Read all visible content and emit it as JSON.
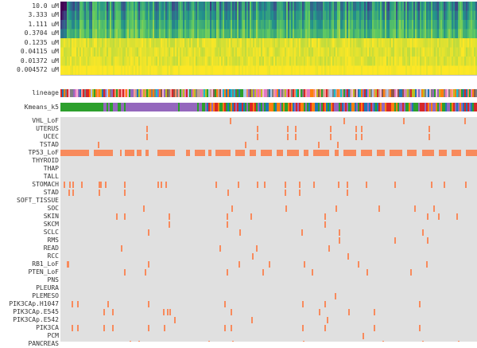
{
  "chart_data": [
    {
      "type": "heatmap",
      "name": "dose-response",
      "rows": [
        "10.0 uM",
        "3.333 uM",
        "1.111 uM",
        "0.3704 uM",
        "0.1235 uM",
        "0.04115 uM",
        "0.01372 uM",
        "0.004572 uM"
      ],
      "colormap": "viridis",
      "columns": 524
    },
    {
      "type": "heatmap",
      "name": "annotations",
      "rows": [
        "lineage",
        "Kmeans_k5"
      ],
      "kmeans_colors": [
        "#2ca02c",
        "#9467bd",
        "#ff7f0e",
        "#d62728",
        "#1f77b4"
      ]
    },
    {
      "type": "heatmap",
      "name": "binary-features",
      "present_color": "#f88a5c",
      "absent_color": "#e0e0e0",
      "rows": [
        {
          "label": "VHL_LoF",
          "cols": [
            213,
            356,
            431,
            508
          ]
        },
        {
          "label": "UTERUS",
          "cols": [
            108,
            247,
            285,
            295,
            339,
            371,
            378,
            463
          ]
        },
        {
          "label": "UCEC",
          "cols": [
            108,
            247,
            285,
            295,
            339,
            371,
            378,
            463
          ]
        },
        {
          "label": "TSTAD",
          "cols": [
            47,
            232,
            324,
            348
          ]
        },
        {
          "label": "TP53_LoF",
          "ranges": [
            [
              0,
              34
            ],
            [
              21,
              36
            ],
            [
              42,
              66
            ],
            [
              75,
              77
            ],
            [
              81,
              93
            ],
            [
              96,
              102
            ],
            [
              107,
              111
            ],
            [
              122,
              144
            ],
            [
              158,
              163
            ],
            [
              169,
              182
            ],
            [
              186,
              190
            ],
            [
              195,
              214
            ],
            [
              220,
              232
            ],
            [
              238,
              246
            ],
            [
              252,
              266
            ],
            [
              272,
              280
            ],
            [
              285,
              300
            ],
            [
              306,
              312
            ],
            [
              318,
              338
            ],
            [
              345,
              350
            ],
            [
              356,
              372
            ],
            [
              378,
              392
            ],
            [
              398,
              408
            ],
            [
              414,
              430
            ],
            [
              436,
              448
            ],
            [
              455,
              470
            ],
            [
              476,
              486
            ],
            [
              492,
              504
            ],
            [
              510,
              524
            ]
          ]
        },
        {
          "label": "THYROID",
          "cols": []
        },
        {
          "label": "THAP",
          "cols": []
        },
        {
          "label": "TALL",
          "cols": []
        },
        {
          "label": "STOMACH",
          "cols": [
            4,
            11,
            15,
            26,
            48,
            50,
            56,
            80,
            122,
            126,
            132,
            195,
            223,
            247,
            256,
            282,
            300,
            318,
            349,
            360,
            384,
            420,
            466,
            482,
            509
          ]
        },
        {
          "label": "STAD",
          "cols": [
            10,
            15,
            48,
            80,
            210,
            282,
            300,
            360
          ]
        },
        {
          "label": "SOFT_TISSUE",
          "cols": []
        },
        {
          "label": "SOC",
          "cols": [
            104,
            215,
            283,
            346,
            400,
            445,
            469
          ]
        },
        {
          "label": "SKIN",
          "cols": [
            70,
            80,
            136,
            209,
            239,
            332,
            461,
            475,
            498
          ]
        },
        {
          "label": "SKCM",
          "cols": [
            136,
            209,
            332
          ]
        },
        {
          "label": "SCLC",
          "cols": [
            110,
            225,
            303,
            350,
            455
          ]
        },
        {
          "label": "RMS",
          "cols": [
            350,
            420,
            461
          ]
        },
        {
          "label": "READ",
          "cols": [
            76,
            200,
            246,
            337
          ]
        },
        {
          "label": "RCC",
          "cols": [
            241,
            361
          ]
        },
        {
          "label": "RB1_LoF",
          "cols": [
            8,
            9,
            110,
            224,
            262,
            306,
            374,
            460
          ]
        },
        {
          "label": "PTEN_LoF",
          "cols": [
            80,
            106,
            209,
            254,
            316,
            385,
            440
          ]
        },
        {
          "label": "PNS",
          "cols": []
        },
        {
          "label": "PLEURA",
          "cols": []
        },
        {
          "label": "PLEMESO",
          "cols": [
            345
          ]
        },
        {
          "label": "PIK3CAp.H1047",
          "cols": [
            14,
            21,
            59,
            110,
            206,
            304,
            332,
            451
          ]
        },
        {
          "label": "PIK3CAp.E545",
          "cols": [
            54,
            65,
            129,
            134,
            137,
            214,
            325,
            362,
            394
          ]
        },
        {
          "label": "PIK3CAp.E542",
          "cols": [
            143,
            240,
            335
          ]
        },
        {
          "label": "PIK3CA",
          "cols": [
            14,
            21,
            54,
            65,
            110,
            130,
            206,
            214,
            304,
            332,
            394,
            451
          ]
        },
        {
          "label": "PCM",
          "cols": [
            380
          ]
        },
        {
          "label": "PANCREAS",
          "cols": [
            87,
            98,
            186,
            216,
            305,
            405,
            455,
            500
          ]
        }
      ]
    }
  ]
}
